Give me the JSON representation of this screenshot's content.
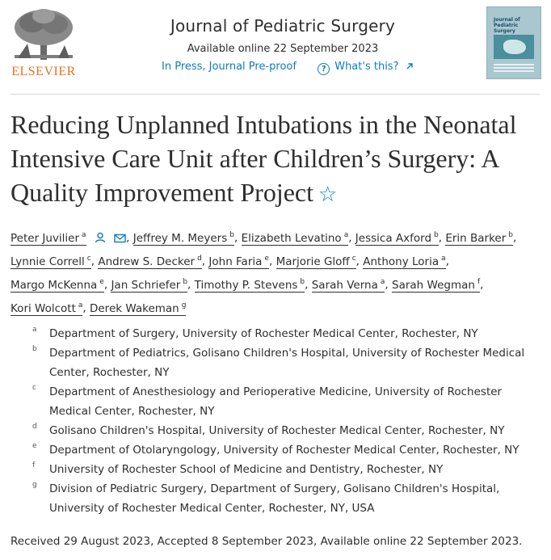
{
  "header": {
    "publisher": "ELSEVIER",
    "journal_title": "Journal of Pediatric Surgery",
    "available_online": "Available online 22 September 2023",
    "status_link": "In Press, Journal Pre-proof",
    "whats_this_link": "What's this?",
    "cover_title": "Journal of Pediatric Surgery"
  },
  "article": {
    "title": "Reducing Unplanned Intubations in the Neonatal Intensive Care Unit after Children’s Surgery: A Quality Improvement Project"
  },
  "authors": [
    {
      "name": "Peter Juvilier",
      "sup": "a"
    },
    {
      "name": "Jeffrey M. Meyers",
      "sup": "b"
    },
    {
      "name": "Elizabeth Levatino",
      "sup": "a"
    },
    {
      "name": "Jessica Axford",
      "sup": "b"
    },
    {
      "name": "Erin Barker",
      "sup": "b"
    },
    {
      "name": "Lynnie Correll",
      "sup": "c"
    },
    {
      "name": "Andrew S. Decker",
      "sup": "d"
    },
    {
      "name": "John Faria",
      "sup": "e"
    },
    {
      "name": "Marjorie Gloff",
      "sup": "c"
    },
    {
      "name": "Anthony Loria",
      "sup": "a"
    },
    {
      "name": "Margo McKenna",
      "sup": "e"
    },
    {
      "name": "Jan Schriefer",
      "sup": "b"
    },
    {
      "name": "Timothy P. Stevens",
      "sup": "b"
    },
    {
      "name": "Sarah Verna",
      "sup": "a"
    },
    {
      "name": "Sarah Wegman",
      "sup": "f"
    },
    {
      "name": "Kori Wolcott",
      "sup": "a"
    },
    {
      "name": "Derek Wakeman",
      "sup": "g"
    }
  ],
  "affiliations": [
    {
      "label": "a",
      "text": "Department of Surgery, University of Rochester Medical Center, Rochester, NY"
    },
    {
      "label": "b",
      "text": "Department of Pediatrics, Golisano Children's Hospital, University of Rochester Medical Center, Rochester, NY"
    },
    {
      "label": "c",
      "text": "Department of Anesthesiology and Perioperative Medicine, University of Rochester Medical Center, Rochester, NY"
    },
    {
      "label": "d",
      "text": "Golisano Children's Hospital, University of Rochester Medical Center, Rochester, NY"
    },
    {
      "label": "e",
      "text": "Department of Otolaryngology, University of Rochester Medical Center, Rochester, NY"
    },
    {
      "label": "f",
      "text": "University of Rochester School of Medicine and Dentistry, Rochester, NY"
    },
    {
      "label": "g",
      "text": "Division of Pediatric Surgery, Department of Surgery, Golisano Children's Hospital, University of Rochester Medical Center, Rochester, NY, USA"
    }
  ],
  "history": "Received 29 August 2023, Accepted 8 September 2023, Available online 22 September 2023.",
  "colors": {
    "accent": "#0c7dbb",
    "elsevier_orange": "#e9711c"
  },
  "icons": [
    "elsevier-tree-logo",
    "journal-cover-thumbnail",
    "question-circle-icon",
    "external-arrow-icon",
    "person-icon",
    "envelope-icon",
    "star-outline-icon"
  ]
}
